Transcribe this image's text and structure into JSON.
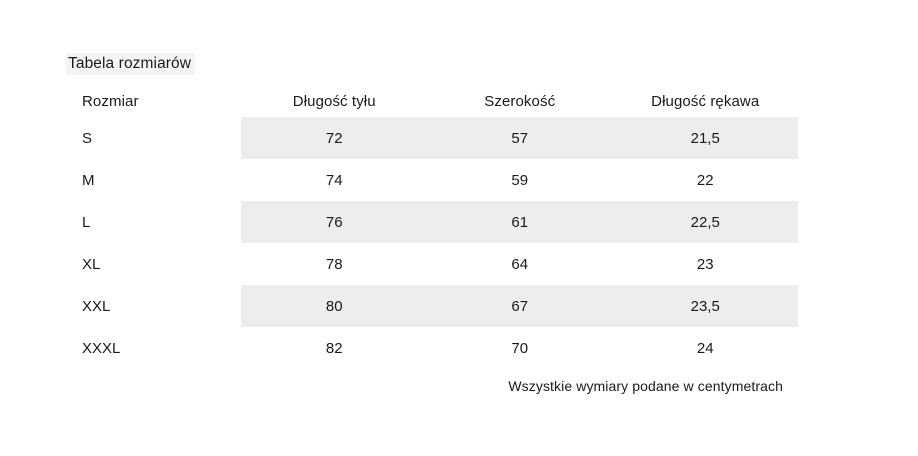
{
  "title": "Tabela rozmiarów",
  "table": {
    "headers": [
      "Rozmiar",
      "Długość tyłu",
      "Szerokość",
      "Długość rękawa"
    ],
    "rows": [
      {
        "size": "S",
        "values": [
          "72",
          "57",
          "21,5"
        ],
        "shaded": true
      },
      {
        "size": "M",
        "values": [
          "74",
          "59",
          "22"
        ],
        "shaded": false
      },
      {
        "size": "L",
        "values": [
          "76",
          "61",
          "22,5"
        ],
        "shaded": true
      },
      {
        "size": "XL",
        "values": [
          "78",
          "64",
          "23"
        ],
        "shaded": false
      },
      {
        "size": "XXL",
        "values": [
          "80",
          "67",
          "23,5"
        ],
        "shaded": true
      },
      {
        "size": "XXXL",
        "values": [
          "82",
          "70",
          "24"
        ],
        "shaded": false
      }
    ],
    "units_note": "Wszystkie wymiary podane w centymetrach"
  },
  "colors": {
    "stripe": "#ededed",
    "title_highlight": "#f4f4f4",
    "text": "#1a1a1a",
    "background": "#ffffff"
  }
}
